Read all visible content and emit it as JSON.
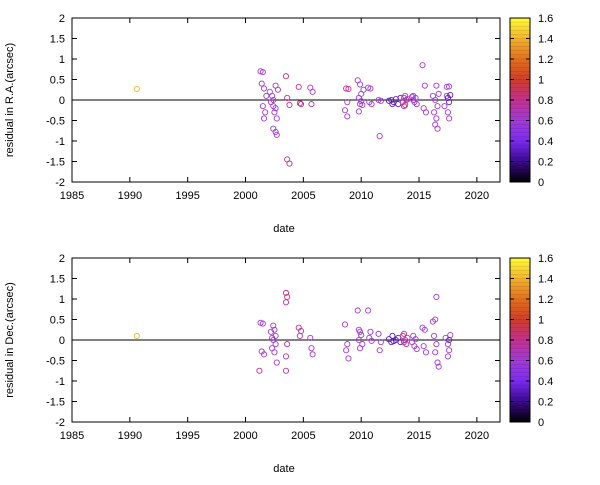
{
  "colorbar": {
    "range": [
      0,
      1.6
    ],
    "ticks": [
      "0",
      "0.2",
      "0.4",
      "0.6",
      "0.8",
      "1",
      "1.2",
      "1.4",
      "1.6"
    ],
    "stops": [
      "#000000",
      "#3a0a8a",
      "#7a2cf0",
      "#a23ad6",
      "#c2308e",
      "#cf3d2a",
      "#e2711d",
      "#f3b22e",
      "#ffff33"
    ]
  },
  "chart_data": [
    {
      "type": "scatter",
      "title": "",
      "xlabel": "date",
      "ylabel": "residual in R.A.(arcsec)",
      "xlim": [
        1985,
        2022
      ],
      "ylim": [
        -2,
        2
      ],
      "xticks": [
        "1985",
        "1990",
        "1995",
        "2000",
        "2005",
        "2010",
        "2015",
        "2020"
      ],
      "yticks": [
        "2",
        "1.5",
        "1",
        "0.5",
        "0",
        "-0.5",
        "-1",
        "-1.5",
        "-2"
      ],
      "zero_line": 0,
      "points": [
        [
          1990.6,
          0.27,
          1.4
        ],
        [
          2001.3,
          0.7,
          0.6
        ],
        [
          2001.5,
          0.68,
          0.6
        ],
        [
          2001.4,
          0.4,
          0.6
        ],
        [
          2001.6,
          0.28,
          0.6
        ],
        [
          2001.8,
          0.1,
          0.6
        ],
        [
          2001.5,
          -0.15,
          0.6
        ],
        [
          2001.7,
          -0.3,
          0.6
        ],
        [
          2001.6,
          -0.45,
          0.6
        ],
        [
          2002.1,
          0.2,
          0.6
        ],
        [
          2002.3,
          0.1,
          0.6
        ],
        [
          2002.4,
          0.0,
          0.6
        ],
        [
          2002.2,
          -0.05,
          0.6
        ],
        [
          2002.4,
          -0.15,
          0.6
        ],
        [
          2002.6,
          -0.2,
          0.6
        ],
        [
          2002.5,
          -0.3,
          0.6
        ],
        [
          2002.7,
          -0.45,
          0.6
        ],
        [
          2002.6,
          0.35,
          0.6
        ],
        [
          2002.8,
          0.25,
          0.6
        ],
        [
          2002.4,
          -0.7,
          0.6
        ],
        [
          2002.6,
          -0.78,
          0.6
        ],
        [
          2002.7,
          -0.85,
          0.6
        ],
        [
          2003.5,
          0.58,
          0.8
        ],
        [
          2003.6,
          0.05,
          0.8
        ],
        [
          2003.8,
          -0.12,
          0.8
        ],
        [
          2003.6,
          -1.45,
          0.8
        ],
        [
          2003.8,
          -1.55,
          0.8
        ],
        [
          2004.6,
          0.32,
          0.8
        ],
        [
          2004.7,
          -0.08,
          0.8
        ],
        [
          2004.8,
          -0.1,
          0.8
        ],
        [
          2005.6,
          0.3,
          0.6
        ],
        [
          2005.8,
          0.2,
          0.6
        ],
        [
          2005.7,
          -0.1,
          0.6
        ],
        [
          2008.7,
          0.28,
          0.8
        ],
        [
          2008.9,
          0.27,
          0.8
        ],
        [
          2008.8,
          -0.05,
          0.6
        ],
        [
          2008.6,
          -0.25,
          0.6
        ],
        [
          2008.8,
          -0.4,
          0.6
        ],
        [
          2009.7,
          0.48,
          0.6
        ],
        [
          2009.9,
          0.38,
          0.6
        ],
        [
          2009.8,
          0.05,
          0.6
        ],
        [
          2010.0,
          -0.03,
          0.6
        ],
        [
          2009.9,
          -0.1,
          0.6
        ],
        [
          2010.1,
          -0.12,
          0.6
        ],
        [
          2010.0,
          0.15,
          0.6
        ],
        [
          2010.2,
          0.25,
          0.6
        ],
        [
          2009.8,
          -0.28,
          0.6
        ],
        [
          2010.6,
          0.3,
          0.6
        ],
        [
          2010.8,
          0.28,
          0.6
        ],
        [
          2010.7,
          -0.05,
          0.6
        ],
        [
          2010.9,
          -0.1,
          0.6
        ],
        [
          2011.5,
          0.0,
          0.6
        ],
        [
          2011.7,
          -0.02,
          0.6
        ],
        [
          2011.6,
          -0.88,
          0.6
        ],
        [
          2012.4,
          -0.02,
          0.3
        ],
        [
          2012.6,
          0.0,
          0.3
        ],
        [
          2012.8,
          -0.05,
          0.3
        ],
        [
          2012.7,
          -0.1,
          0.3
        ],
        [
          2013.0,
          0.02,
          0.3
        ],
        [
          2013.2,
          -0.1,
          0.3
        ],
        [
          2013.4,
          0.05,
          0.3
        ],
        [
          2013.6,
          -0.05,
          0.8
        ],
        [
          2013.7,
          0.05,
          0.8
        ],
        [
          2013.8,
          -0.12,
          0.8
        ],
        [
          2013.9,
          0.0,
          0.8
        ],
        [
          2013.7,
          -0.15,
          0.8
        ],
        [
          2013.8,
          0.1,
          0.6
        ],
        [
          2014.0,
          0.02,
          0.6
        ],
        [
          2014.4,
          0.08,
          0.6
        ],
        [
          2014.5,
          0.0,
          0.6
        ],
        [
          2014.6,
          -0.05,
          0.6
        ],
        [
          2014.7,
          0.05,
          0.6
        ],
        [
          2014.8,
          -0.1,
          0.6
        ],
        [
          2014.5,
          0.1,
          0.6
        ],
        [
          2015.3,
          0.85,
          0.6
        ],
        [
          2015.5,
          0.35,
          0.6
        ],
        [
          2015.4,
          -0.2,
          0.6
        ],
        [
          2015.6,
          -0.3,
          0.6
        ],
        [
          2016.2,
          0.1,
          0.6
        ],
        [
          2016.4,
          0.0,
          0.6
        ],
        [
          2016.3,
          -0.3,
          0.6
        ],
        [
          2016.5,
          -0.45,
          0.6
        ],
        [
          2016.4,
          -0.6,
          0.6
        ],
        [
          2016.6,
          -0.7,
          0.6
        ],
        [
          2016.5,
          0.35,
          0.6
        ],
        [
          2016.7,
          0.15,
          0.6
        ],
        [
          2016.6,
          -0.15,
          0.6
        ],
        [
          2017.2,
          -0.15,
          0.6
        ],
        [
          2017.4,
          0.1,
          0.6
        ],
        [
          2017.5,
          0.05,
          0.3
        ],
        [
          2017.6,
          -0.05,
          0.3
        ],
        [
          2017.7,
          0.12,
          0.3
        ],
        [
          2017.4,
          0.32,
          0.6
        ],
        [
          2017.6,
          0.33,
          0.6
        ],
        [
          2017.5,
          -0.3,
          0.6
        ],
        [
          2017.6,
          -0.45,
          0.6
        ]
      ]
    },
    {
      "type": "scatter",
      "title": "",
      "xlabel": "date",
      "ylabel": "residual in Dec.(arcsec)",
      "xlim": [
        1985,
        2022
      ],
      "ylim": [
        -2,
        2
      ],
      "xticks": [
        "1985",
        "1990",
        "1995",
        "2000",
        "2005",
        "2010",
        "2015",
        "2020"
      ],
      "yticks": [
        "2",
        "1.5",
        "1",
        "0.5",
        "0",
        "-0.5",
        "-1",
        "-1.5",
        "-2"
      ],
      "zero_line": 0,
      "points": [
        [
          1990.6,
          0.1,
          1.4
        ],
        [
          2001.3,
          0.42,
          0.6
        ],
        [
          2001.5,
          0.4,
          0.6
        ],
        [
          2001.4,
          -0.28,
          0.6
        ],
        [
          2001.6,
          -0.35,
          0.6
        ],
        [
          2001.2,
          -0.75,
          0.8
        ],
        [
          2002.2,
          0.2,
          0.6
        ],
        [
          2002.4,
          0.35,
          0.6
        ],
        [
          2002.5,
          0.25,
          0.6
        ],
        [
          2002.6,
          0.1,
          0.6
        ],
        [
          2002.4,
          0.0,
          0.6
        ],
        [
          2002.6,
          -0.1,
          0.6
        ],
        [
          2002.3,
          -0.2,
          0.6
        ],
        [
          2002.5,
          -0.3,
          0.6
        ],
        [
          2002.7,
          -0.55,
          0.6
        ],
        [
          2002.3,
          0.05,
          0.6
        ],
        [
          2003.5,
          1.15,
          0.8
        ],
        [
          2003.6,
          1.05,
          0.8
        ],
        [
          2003.5,
          0.92,
          0.8
        ],
        [
          2003.6,
          -0.1,
          0.8
        ],
        [
          2003.5,
          -0.4,
          0.8
        ],
        [
          2003.5,
          -0.75,
          0.8
        ],
        [
          2004.6,
          0.3,
          0.8
        ],
        [
          2004.8,
          0.22,
          0.8
        ],
        [
          2004.7,
          0.1,
          0.8
        ],
        [
          2005.6,
          0.05,
          0.6
        ],
        [
          2005.7,
          -0.2,
          0.6
        ],
        [
          2005.8,
          -0.35,
          0.6
        ],
        [
          2008.6,
          0.38,
          0.6
        ],
        [
          2008.8,
          -0.1,
          0.6
        ],
        [
          2008.7,
          -0.25,
          0.6
        ],
        [
          2008.9,
          -0.45,
          0.6
        ],
        [
          2009.7,
          0.72,
          0.6
        ],
        [
          2009.8,
          0.25,
          0.6
        ],
        [
          2009.9,
          0.2,
          0.6
        ],
        [
          2010.0,
          0.12,
          0.6
        ],
        [
          2009.8,
          0.0,
          0.6
        ],
        [
          2010.1,
          -0.1,
          0.6
        ],
        [
          2009.9,
          -0.2,
          0.6
        ],
        [
          2010.6,
          0.72,
          0.6
        ],
        [
          2010.7,
          0.05,
          0.6
        ],
        [
          2010.9,
          -0.02,
          0.6
        ],
        [
          2010.8,
          0.2,
          0.6
        ],
        [
          2011.5,
          0.15,
          0.6
        ],
        [
          2011.7,
          -0.05,
          0.6
        ],
        [
          2011.6,
          -0.25,
          0.6
        ],
        [
          2012.4,
          0.02,
          0.3
        ],
        [
          2012.6,
          -0.05,
          0.3
        ],
        [
          2012.7,
          0.1,
          0.3
        ],
        [
          2012.8,
          -0.03,
          0.3
        ],
        [
          2013.0,
          0.0,
          0.3
        ],
        [
          2013.2,
          0.05,
          0.3
        ],
        [
          2013.4,
          -0.05,
          0.3
        ],
        [
          2013.6,
          0.1,
          0.8
        ],
        [
          2013.7,
          -0.05,
          0.8
        ],
        [
          2013.8,
          0.0,
          0.8
        ],
        [
          2013.7,
          0.15,
          0.8
        ],
        [
          2013.9,
          -0.1,
          0.8
        ],
        [
          2014.0,
          0.05,
          0.6
        ],
        [
          2014.4,
          -0.05,
          0.6
        ],
        [
          2014.5,
          0.1,
          0.6
        ],
        [
          2014.6,
          -0.15,
          0.6
        ],
        [
          2014.7,
          0.02,
          0.6
        ],
        [
          2014.8,
          -0.22,
          0.6
        ],
        [
          2015.3,
          0.3,
          0.6
        ],
        [
          2015.5,
          0.25,
          0.6
        ],
        [
          2015.4,
          -0.15,
          0.6
        ],
        [
          2015.6,
          -0.3,
          0.6
        ],
        [
          2016.2,
          0.45,
          0.6
        ],
        [
          2016.4,
          0.5,
          0.6
        ],
        [
          2016.5,
          1.05,
          0.6
        ],
        [
          2016.3,
          0.1,
          0.6
        ],
        [
          2016.5,
          -0.1,
          0.6
        ],
        [
          2016.4,
          -0.3,
          0.6
        ],
        [
          2016.6,
          -0.55,
          0.6
        ],
        [
          2016.7,
          -0.65,
          0.6
        ],
        [
          2017.3,
          0.05,
          0.6
        ],
        [
          2017.5,
          -0.1,
          0.6
        ],
        [
          2017.6,
          -0.25,
          0.6
        ],
        [
          2017.7,
          0.12,
          0.6
        ],
        [
          2017.5,
          -0.4,
          0.6
        ],
        [
          2017.6,
          0.0,
          0.3
        ]
      ]
    }
  ]
}
